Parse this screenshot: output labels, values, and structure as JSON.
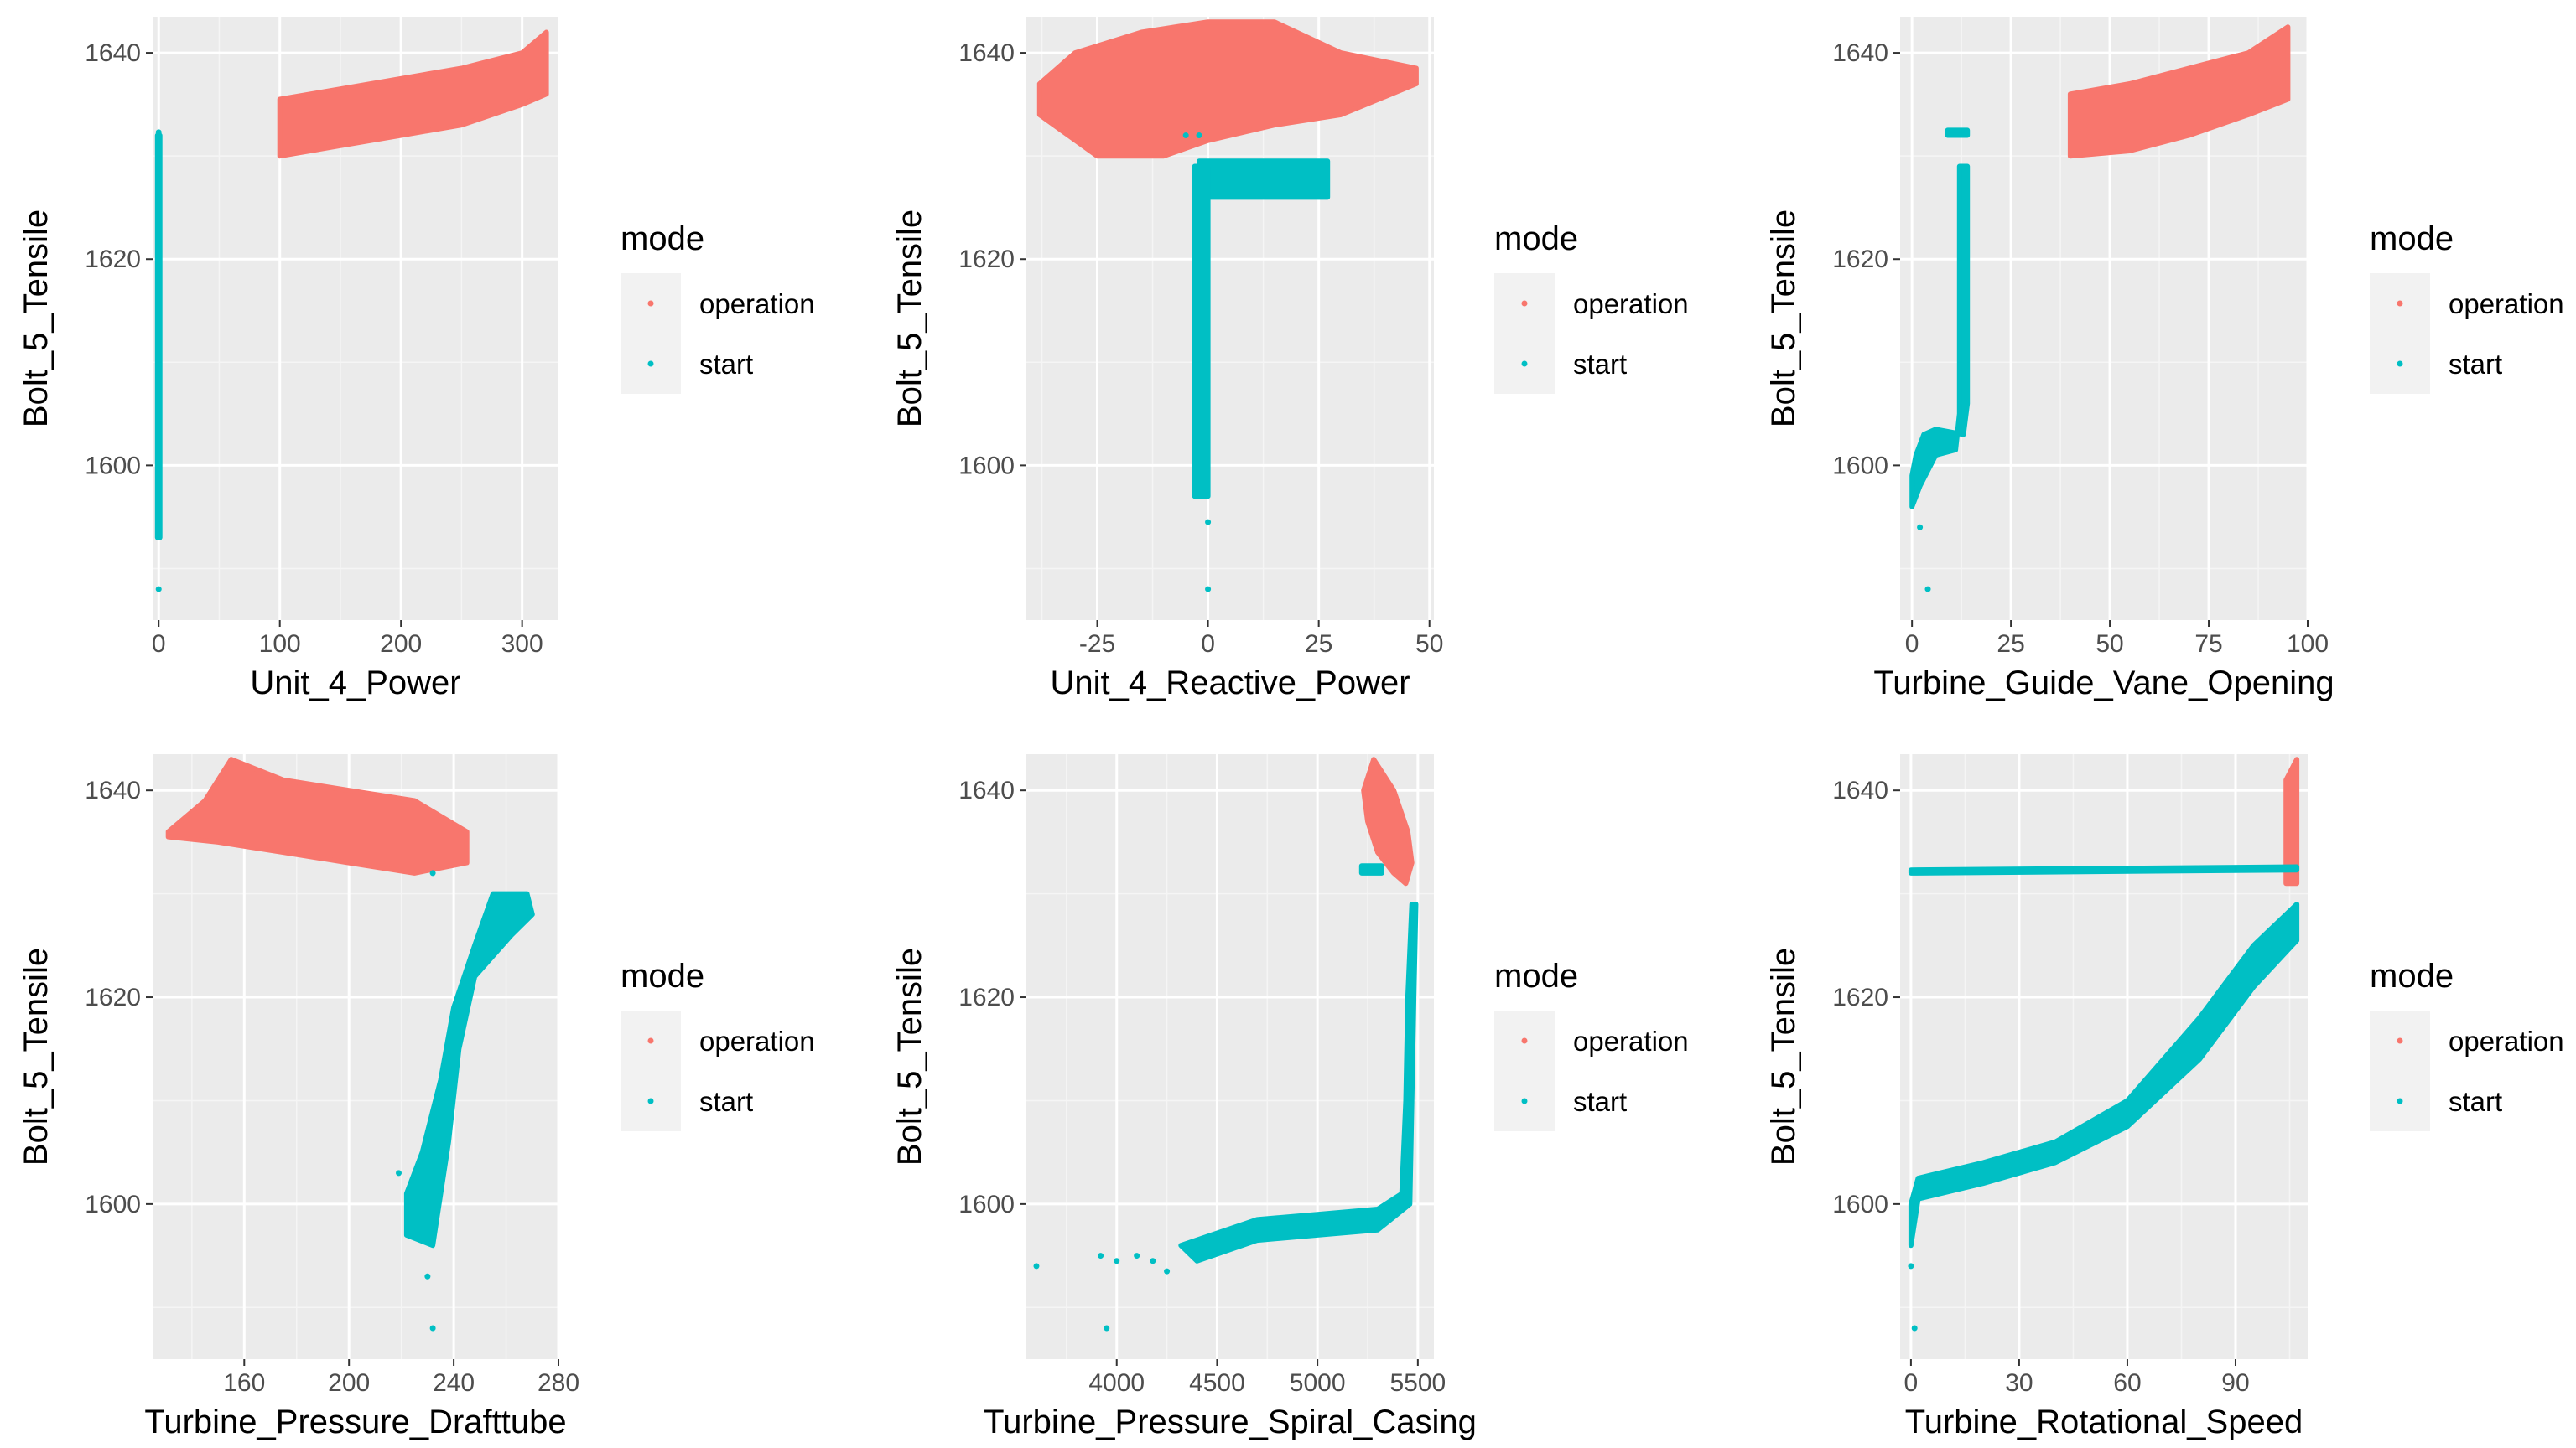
{
  "colors": {
    "operation": "#F8766D",
    "start": "#00BFC4",
    "panel_bg": "#EBEBEB",
    "grid_major": "#FFFFFF",
    "grid_minor": "#F5F5F5"
  },
  "legend": {
    "title": "mode",
    "items": [
      {
        "label": "operation",
        "color": "#F8766D"
      },
      {
        "label": "start",
        "color": "#00BFC4"
      }
    ]
  },
  "chart_data": [
    {
      "type": "scatter",
      "xlabel": "Unit_4_Power",
      "ylabel": "Bolt_5_Tensile",
      "xlim": [
        -5,
        330
      ],
      "ylim": [
        1585,
        1643.5
      ],
      "xticks": [
        0,
        100,
        200,
        300
      ],
      "yticks": [
        1600,
        1620,
        1640
      ],
      "series": [
        {
          "name": "operation",
          "shape": "band",
          "points": [
            [
              100,
              1630
            ],
            [
              150,
              1631
            ],
            [
              200,
              1632
            ],
            [
              250,
              1633
            ],
            [
              300,
              1635
            ],
            [
              320,
              1636
            ],
            [
              320,
              1642
            ],
            [
              300,
              1640
            ],
            [
              250,
              1638.5
            ],
            [
              200,
              1637.5
            ],
            [
              150,
              1636.5
            ],
            [
              100,
              1635.5
            ]
          ]
        },
        {
          "name": "start",
          "shape": "band",
          "points": [
            [
              -1,
              1593
            ],
            [
              1,
              1593
            ],
            [
              1,
              1632
            ],
            [
              -1,
              1632
            ]
          ]
        },
        {
          "name": "start",
          "shape": "points",
          "points": [
            [
              0,
              1632.3
            ],
            [
              0,
              1588
            ]
          ]
        }
      ]
    },
    {
      "type": "scatter",
      "xlabel": "Unit_4_Reactive_Power",
      "ylabel": "Bolt_5_Tensile",
      "xlim": [
        -41,
        51
      ],
      "ylim": [
        1585,
        1643.5
      ],
      "xticks": [
        -25,
        0,
        25,
        50
      ],
      "yticks": [
        1600,
        1620,
        1640
      ],
      "series": [
        {
          "name": "operation",
          "shape": "band",
          "points": [
            [
              -38,
              1637
            ],
            [
              -30,
              1640
            ],
            [
              -15,
              1642
            ],
            [
              0,
              1643
            ],
            [
              15,
              1643
            ],
            [
              30,
              1640
            ],
            [
              47,
              1638.5
            ],
            [
              47,
              1637
            ],
            [
              30,
              1634
            ],
            [
              15,
              1633
            ],
            [
              0,
              1631.5
            ],
            [
              -10,
              1630
            ],
            [
              -25,
              1630
            ],
            [
              -38,
              1634
            ]
          ]
        },
        {
          "name": "start",
          "shape": "band",
          "points": [
            [
              -2,
              1626
            ],
            [
              27,
              1626
            ],
            [
              27,
              1629.5
            ],
            [
              -2,
              1629.5
            ]
          ]
        },
        {
          "name": "start",
          "shape": "band",
          "points": [
            [
              -3,
              1597
            ],
            [
              0,
              1597
            ],
            [
              0,
              1629
            ],
            [
              -3,
              1629
            ]
          ]
        },
        {
          "name": "start",
          "shape": "points",
          "points": [
            [
              -5,
              1632
            ],
            [
              -2,
              1632
            ],
            [
              0,
              1594.5
            ],
            [
              0,
              1588
            ]
          ]
        }
      ]
    },
    {
      "type": "scatter",
      "xlabel": "Turbine_Guide_Vane_Opening",
      "ylabel": "Bolt_5_Tensile",
      "xlim": [
        -3,
        100
      ],
      "ylim": [
        1585,
        1643.5
      ],
      "xticks": [
        0,
        25,
        50,
        75,
        100
      ],
      "yticks": [
        1600,
        1620,
        1640
      ],
      "series": [
        {
          "name": "operation",
          "shape": "band",
          "points": [
            [
              40,
              1630
            ],
            [
              55,
              1630.5
            ],
            [
              70,
              1632
            ],
            [
              85,
              1634
            ],
            [
              95,
              1635.5
            ],
            [
              95,
              1642.5
            ],
            [
              85,
              1640
            ],
            [
              70,
              1638.5
            ],
            [
              55,
              1637
            ],
            [
              40,
              1636
            ]
          ]
        },
        {
          "name": "start",
          "shape": "band",
          "points": [
            [
              0,
              1596
            ],
            [
              2,
              1598
            ],
            [
              6,
              1601
            ],
            [
              11,
              1601.5
            ],
            [
              12,
              1605
            ],
            [
              12,
              1629
            ],
            [
              14,
              1629
            ],
            [
              14,
              1606
            ],
            [
              13,
              1603
            ],
            [
              6,
              1603.5
            ],
            [
              3,
              1603
            ],
            [
              1,
              1601
            ],
            [
              0,
              1599
            ]
          ]
        },
        {
          "name": "start",
          "shape": "band",
          "points": [
            [
              9,
              1632
            ],
            [
              14,
              1632
            ],
            [
              14,
              1632.5
            ],
            [
              9,
              1632.5
            ]
          ]
        },
        {
          "name": "start",
          "shape": "points",
          "points": [
            [
              2,
              1594
            ],
            [
              4,
              1588
            ]
          ]
        }
      ]
    },
    {
      "type": "scatter",
      "xlabel": "Turbine_Pressure_Drafttube",
      "ylabel": "Bolt_5_Tensile",
      "xlim": [
        125,
        280
      ],
      "ylim": [
        1585,
        1643.5
      ],
      "xticks": [
        160,
        200,
        240,
        280
      ],
      "yticks": [
        1600,
        1620,
        1640
      ],
      "series": [
        {
          "name": "operation",
          "shape": "band",
          "points": [
            [
              131,
              1636
            ],
            [
              145,
              1639
            ],
            [
              155,
              1643
            ],
            [
              175,
              1641
            ],
            [
              200,
              1640
            ],
            [
              225,
              1639
            ],
            [
              245,
              1636
            ],
            [
              245,
              1633
            ],
            [
              225,
              1632
            ],
            [
              200,
              1633
            ],
            [
              175,
              1634
            ],
            [
              150,
              1635
            ],
            [
              131,
              1635.5
            ]
          ]
        },
        {
          "name": "start",
          "shape": "band",
          "points": [
            [
              222,
              1597
            ],
            [
              232,
              1596
            ],
            [
              238,
              1606
            ],
            [
              242,
              1615
            ],
            [
              248,
              1622
            ],
            [
              262,
              1626
            ],
            [
              270,
              1628
            ],
            [
              268,
              1630
            ],
            [
              255,
              1630
            ],
            [
              248,
              1625
            ],
            [
              240,
              1619
            ],
            [
              235,
              1612
            ],
            [
              228,
              1605
            ],
            [
              222,
              1601
            ]
          ]
        },
        {
          "name": "start",
          "shape": "points",
          "points": [
            [
              232,
              1632
            ],
            [
              230,
              1593
            ],
            [
              232,
              1588
            ],
            [
              219,
              1603
            ]
          ]
        }
      ]
    },
    {
      "type": "scatter",
      "xlabel": "Turbine_Pressure_Spiral_Casing",
      "ylabel": "Bolt_5_Tensile",
      "xlim": [
        3550,
        5580
      ],
      "ylim": [
        1585,
        1643.5
      ],
      "xticks": [
        4000,
        4500,
        5000,
        5500
      ],
      "yticks": [
        1600,
        1620,
        1640
      ],
      "series": [
        {
          "name": "operation",
          "shape": "band",
          "points": [
            [
              5230,
              1640
            ],
            [
              5280,
              1643
            ],
            [
              5380,
              1640
            ],
            [
              5450,
              1636
            ],
            [
              5470,
              1633
            ],
            [
              5440,
              1631
            ],
            [
              5380,
              1632
            ],
            [
              5300,
              1634
            ],
            [
              5250,
              1637
            ]
          ]
        },
        {
          "name": "start",
          "shape": "band",
          "points": [
            [
              4320,
              1596
            ],
            [
              4700,
              1598.5
            ],
            [
              5000,
              1599
            ],
            [
              5300,
              1599.5
            ],
            [
              5420,
              1601
            ],
            [
              5440,
              1610
            ],
            [
              5450,
              1620
            ],
            [
              5470,
              1629
            ],
            [
              5490,
              1629
            ],
            [
              5480,
              1620
            ],
            [
              5470,
              1610
            ],
            [
              5460,
              1600
            ],
            [
              5300,
              1597.5
            ],
            [
              5000,
              1597
            ],
            [
              4700,
              1596.5
            ],
            [
              4400,
              1594.5
            ]
          ]
        },
        {
          "name": "start",
          "shape": "band",
          "points": [
            [
              5220,
              1632
            ],
            [
              5320,
              1632
            ],
            [
              5320,
              1632.7
            ],
            [
              5220,
              1632.7
            ]
          ]
        },
        {
          "name": "start",
          "shape": "points",
          "points": [
            [
              3600,
              1594
            ],
            [
              3920,
              1595
            ],
            [
              4000,
              1594.5
            ],
            [
              4100,
              1595
            ],
            [
              4180,
              1594.5
            ],
            [
              4250,
              1593.5
            ],
            [
              3950,
              1588
            ]
          ]
        }
      ]
    },
    {
      "type": "scatter",
      "xlabel": "Turbine_Rotational_Speed",
      "ylabel": "Bolt_5_Tensile",
      "xlim": [
        -3,
        110
      ],
      "ylim": [
        1585,
        1643.5
      ],
      "xticks": [
        0,
        30,
        60,
        90
      ],
      "yticks": [
        1600,
        1620,
        1640
      ],
      "series": [
        {
          "name": "operation",
          "shape": "band",
          "points": [
            [
              104,
              1631
            ],
            [
              107,
              1631
            ],
            [
              107,
              1643
            ],
            [
              104,
              1641
            ]
          ]
        },
        {
          "name": "start",
          "shape": "band",
          "points": [
            [
              0,
              1596
            ],
            [
              2,
              1600.5
            ],
            [
              20,
              1602
            ],
            [
              40,
              1604
            ],
            [
              60,
              1607.5
            ],
            [
              80,
              1614
            ],
            [
              95,
              1621
            ],
            [
              107,
              1625.5
            ],
            [
              107,
              1629
            ],
            [
              95,
              1625
            ],
            [
              80,
              1618
            ],
            [
              60,
              1610
            ],
            [
              40,
              1606
            ],
            [
              20,
              1604
            ],
            [
              2,
              1602.5
            ],
            [
              0,
              1600
            ]
          ]
        },
        {
          "name": "start",
          "shape": "band",
          "points": [
            [
              0,
              1632
            ],
            [
              107,
              1632.3
            ],
            [
              107,
              1632.6
            ],
            [
              0,
              1632.3
            ]
          ]
        },
        {
          "name": "start",
          "shape": "points",
          "points": [
            [
              0,
              1594
            ],
            [
              1,
              1588
            ]
          ]
        }
      ]
    }
  ]
}
